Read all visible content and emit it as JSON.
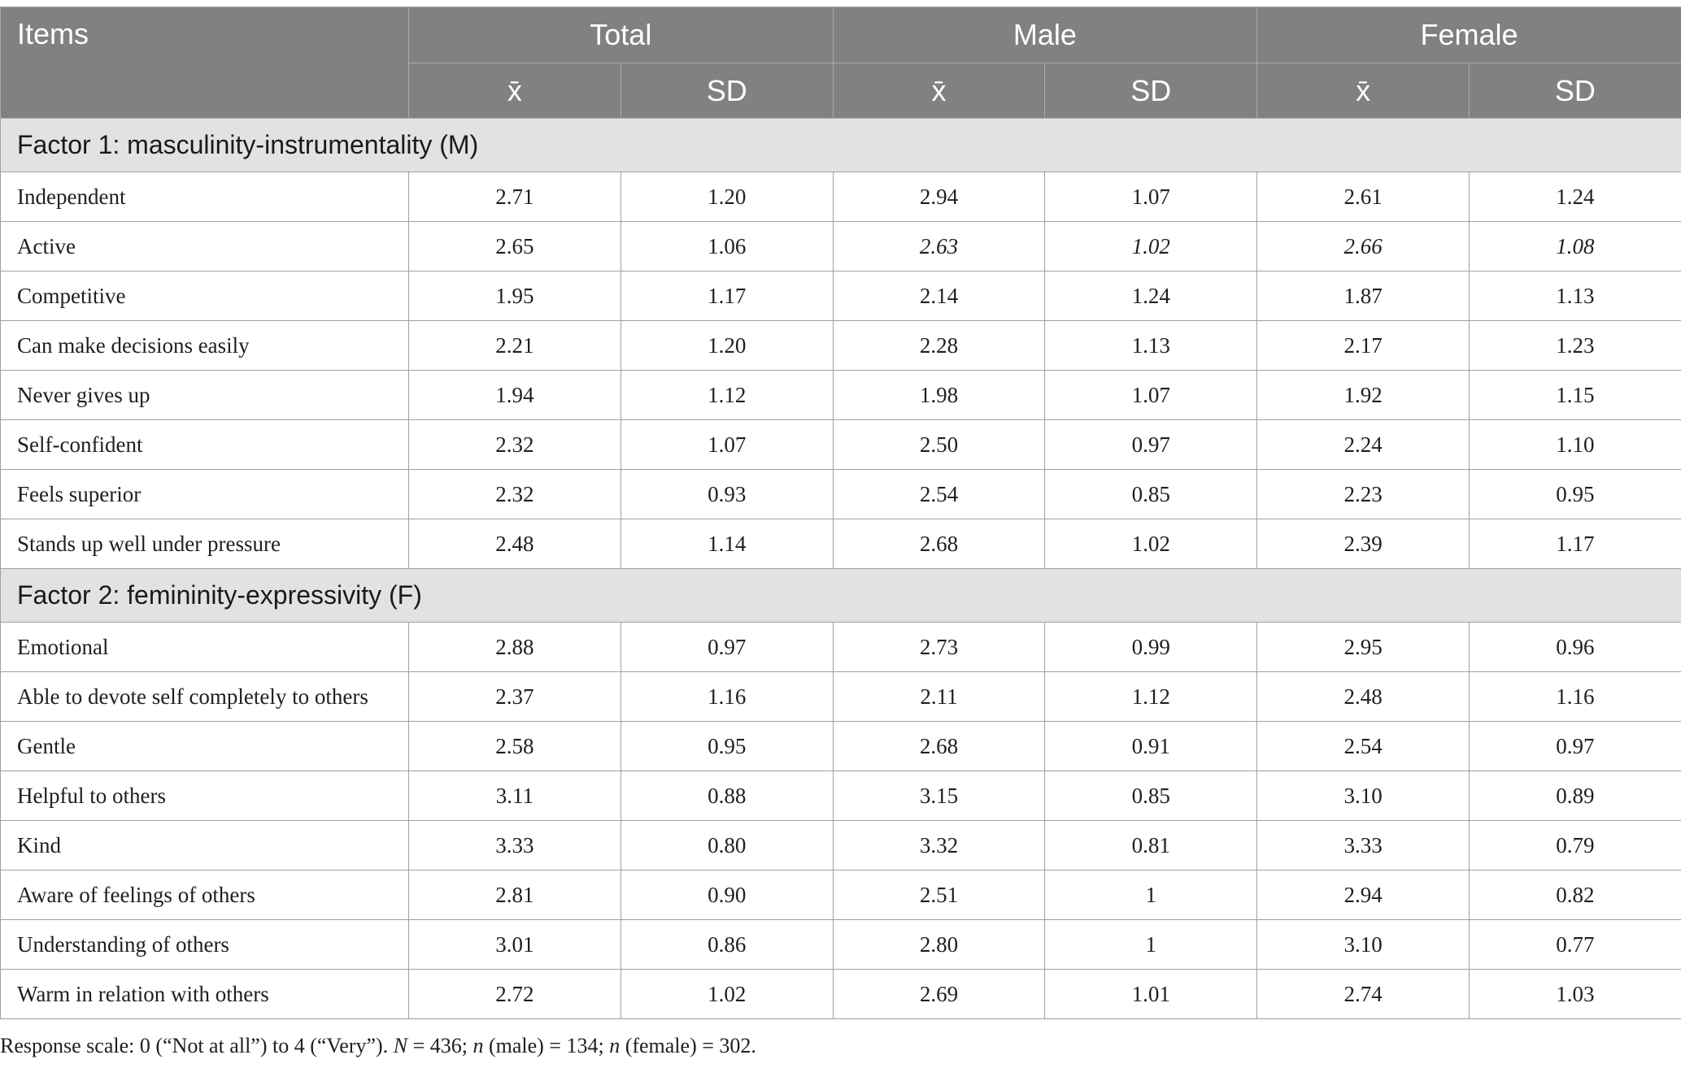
{
  "header": {
    "items": "Items",
    "groups": [
      "Total",
      "Male",
      "Female"
    ],
    "subcols": [
      "x̄",
      "SD",
      "x̄",
      "SD",
      "x̄",
      "SD"
    ]
  },
  "sections": [
    {
      "title": "Factor 1: masculinity-instrumentality (M)",
      "rows": [
        {
          "label": "Independent",
          "values": [
            "2.71",
            "1.20",
            "2.94",
            "1.07",
            "2.61",
            "1.24"
          ]
        },
        {
          "label": "Active",
          "values": [
            "2.65",
            "1.06",
            "2.63",
            "1.02",
            "2.66",
            "1.08"
          ]
        },
        {
          "label": "Competitive",
          "values": [
            "1.95",
            "1.17",
            "2.14",
            "1.24",
            "1.87",
            "1.13"
          ]
        },
        {
          "label": "Can make decisions easily",
          "values": [
            "2.21",
            "1.20",
            "2.28",
            "1.13",
            "2.17",
            "1.23"
          ]
        },
        {
          "label": "Never gives up",
          "values": [
            "1.94",
            "1.12",
            "1.98",
            "1.07",
            "1.92",
            "1.15"
          ]
        },
        {
          "label": "Self-confident",
          "values": [
            "2.32",
            "1.07",
            "2.50",
            "0.97",
            "2.24",
            "1.10"
          ]
        },
        {
          "label": "Feels superior",
          "values": [
            "2.32",
            "0.93",
            "2.54",
            "0.85",
            "2.23",
            "0.95"
          ]
        },
        {
          "label": "Stands up well under pressure",
          "values": [
            "2.48",
            "1.14",
            "2.68",
            "1.02",
            "2.39",
            "1.17"
          ]
        }
      ]
    },
    {
      "title": "Factor 2: femininity-expressivity (F)",
      "rows": [
        {
          "label": "Emotional",
          "values": [
            "2.88",
            "0.97",
            "2.73",
            "0.99",
            "2.95",
            "0.96"
          ]
        },
        {
          "label": "Able to devote self completely to others",
          "values": [
            "2.37",
            "1.16",
            "2.11",
            "1.12",
            "2.48",
            "1.16"
          ]
        },
        {
          "label": "Gentle",
          "values": [
            "2.58",
            "0.95",
            "2.68",
            "0.91",
            "2.54",
            "0.97"
          ]
        },
        {
          "label": "Helpful to others",
          "values": [
            "3.11",
            "0.88",
            "3.15",
            "0.85",
            "3.10",
            "0.89"
          ]
        },
        {
          "label": "Kind",
          "values": [
            "3.33",
            "0.80",
            "3.32",
            "0.81",
            "3.33",
            "0.79"
          ]
        },
        {
          "label": "Aware of feelings of others",
          "values": [
            "2.81",
            "0.90",
            "2.51",
            "1",
            "2.94",
            "0.82"
          ]
        },
        {
          "label": "Understanding of others",
          "values": [
            "3.01",
            "0.86",
            "2.80",
            "1",
            "3.10",
            "0.77"
          ]
        },
        {
          "label": "Warm in relation with others",
          "values": [
            "2.72",
            "1.02",
            "2.69",
            "1.01",
            "2.74",
            "1.03"
          ]
        }
      ]
    }
  ],
  "footnote": {
    "scale": "Response scale: 0 (“Not at all”) to 4 (“Very”). ",
    "N_sym": "N",
    "N_val": " = 436; ",
    "n_sym1": "n",
    "n_male": " (male) = 134; ",
    "n_sym2": "n",
    "n_female": " (female) = 302."
  }
}
